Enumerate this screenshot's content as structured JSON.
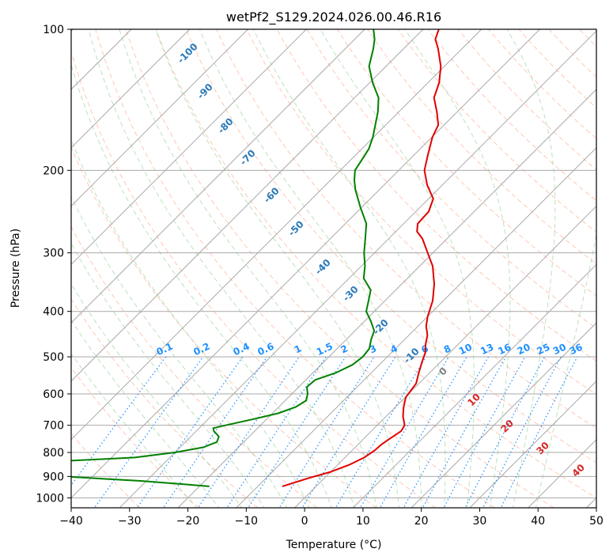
{
  "chart_data": {
    "type": "line",
    "subtype": "skew-t log-p diagram",
    "title": "wetPf2_S129.2024.026.00.46.R16",
    "xlabel": "Temperature (°C)",
    "ylabel": "Pressure (hPa)",
    "xlim": [
      -40,
      50
    ],
    "ylim": [
      1050,
      100
    ],
    "y_scale": "log",
    "grid": true,
    "x_ticks": [
      -40,
      -30,
      -20,
      -10,
      0,
      10,
      20,
      30,
      40,
      50
    ],
    "x_tick_labels": [
      "−40",
      "−30",
      "−20",
      "−10",
      "0",
      "10",
      "20",
      "30",
      "40",
      "50"
    ],
    "y_ticks": [
      100,
      200,
      300,
      400,
      500,
      600,
      700,
      800,
      900,
      1000
    ],
    "y_tick_labels": [
      "100",
      "200",
      "300",
      "400",
      "500",
      "600",
      "700",
      "800",
      "900",
      "1000"
    ],
    "series": [
      {
        "color": "#e00000",
        "points": [
          {
            "p": 945,
            "t": -5.8
          },
          {
            "p": 930,
            "t": -4.6
          },
          {
            "p": 905,
            "t": -2.5
          },
          {
            "p": 880,
            "t": 0.0
          },
          {
            "p": 850,
            "t": 2.0
          },
          {
            "p": 820,
            "t": 3.3
          },
          {
            "p": 790,
            "t": 3.9
          },
          {
            "p": 770,
            "t": 4.0
          },
          {
            "p": 750,
            "t": 4.4
          },
          {
            "p": 720,
            "t": 5.1
          },
          {
            "p": 700,
            "t": 4.7
          },
          {
            "p": 670,
            "t": 2.9
          },
          {
            "p": 640,
            "t": 1.4
          },
          {
            "p": 610,
            "t": 0.1
          },
          {
            "p": 570,
            "t": -0.5
          },
          {
            "p": 540,
            "t": -1.9
          },
          {
            "p": 510,
            "t": -3.3
          },
          {
            "p": 490,
            "t": -4.2
          },
          {
            "p": 470,
            "t": -5.6
          },
          {
            "p": 450,
            "t": -6.8
          },
          {
            "p": 430,
            "t": -8.6
          },
          {
            "p": 410,
            "t": -10.0
          },
          {
            "p": 380,
            "t": -11.8
          },
          {
            "p": 350,
            "t": -14.4
          },
          {
            "p": 320,
            "t": -17.8
          },
          {
            "p": 300,
            "t": -20.9
          },
          {
            "p": 280,
            "t": -24.2
          },
          {
            "p": 270,
            "t": -26.4
          },
          {
            "p": 260,
            "t": -27.6
          },
          {
            "p": 245,
            "t": -27.8
          },
          {
            "p": 230,
            "t": -29.2
          },
          {
            "p": 215,
            "t": -32.6
          },
          {
            "p": 200,
            "t": -35.6
          },
          {
            "p": 185,
            "t": -37.7
          },
          {
            "p": 170,
            "t": -39.9
          },
          {
            "p": 160,
            "t": -41.0
          },
          {
            "p": 150,
            "t": -43.5
          },
          {
            "p": 140,
            "t": -46.4
          },
          {
            "p": 130,
            "t": -48.1
          },
          {
            "p": 120,
            "t": -50.6
          },
          {
            "p": 110,
            "t": -54.1
          },
          {
            "p": 105,
            "t": -56.2
          },
          {
            "p": 100,
            "t": -57.3
          }
        ]
      },
      {
        "color": "#008000",
        "points": [
          {
            "p": 945,
            "t": -18.3
          },
          {
            "p": 935,
            "t": -23.0
          },
          {
            "p": 920,
            "t": -31.0
          },
          {
            "p": 910,
            "t": -38.0
          },
          {
            "p": 900,
            "t": -45.0
          },
          {
            "p": 860,
            "t": -60.0
          },
          {
            "p": 840,
            "t": -52.0
          },
          {
            "p": 820,
            "t": -36.0
          },
          {
            "p": 800,
            "t": -30.0
          },
          {
            "p": 780,
            "t": -26.0
          },
          {
            "p": 760,
            "t": -24.6
          },
          {
            "p": 740,
            "t": -25.2
          },
          {
            "p": 720,
            "t": -27.0
          },
          {
            "p": 710,
            "t": -27.6
          },
          {
            "p": 700,
            "t": -26.0
          },
          {
            "p": 680,
            "t": -22.4
          },
          {
            "p": 660,
            "t": -19.0
          },
          {
            "p": 640,
            "t": -17.1
          },
          {
            "p": 620,
            "t": -16.4
          },
          {
            "p": 600,
            "t": -17.3
          },
          {
            "p": 580,
            "t": -18.6
          },
          {
            "p": 560,
            "t": -18.4
          },
          {
            "p": 540,
            "t": -16.0
          },
          {
            "p": 520,
            "t": -14.6
          },
          {
            "p": 500,
            "t": -14.2
          },
          {
            "p": 480,
            "t": -14.5
          },
          {
            "p": 460,
            "t": -15.7
          },
          {
            "p": 440,
            "t": -16.7
          },
          {
            "p": 420,
            "t": -18.9
          },
          {
            "p": 400,
            "t": -21.4
          },
          {
            "p": 380,
            "t": -22.8
          },
          {
            "p": 360,
            "t": -24.3
          },
          {
            "p": 340,
            "t": -27.5
          },
          {
            "p": 320,
            "t": -29.4
          },
          {
            "p": 300,
            "t": -31.8
          },
          {
            "p": 280,
            "t": -34.0
          },
          {
            "p": 260,
            "t": -36.4
          },
          {
            "p": 240,
            "t": -40.2
          },
          {
            "p": 220,
            "t": -44.1
          },
          {
            "p": 210,
            "t": -45.9
          },
          {
            "p": 200,
            "t": -47.5
          },
          {
            "p": 190,
            "t": -48.1
          },
          {
            "p": 180,
            "t": -48.8
          },
          {
            "p": 170,
            "t": -50.1
          },
          {
            "p": 160,
            "t": -51.8
          },
          {
            "p": 150,
            "t": -53.6
          },
          {
            "p": 140,
            "t": -55.9
          },
          {
            "p": 130,
            "t": -59.5
          },
          {
            "p": 120,
            "t": -62.9
          },
          {
            "p": 110,
            "t": -65.2
          },
          {
            "p": 105,
            "t": -66.6
          },
          {
            "p": 100,
            "t": -68.5
          }
        ]
      }
    ],
    "dry_adiabat_labels": [
      "-100",
      "-90",
      "-80",
      "-70",
      "-60",
      "-50",
      "-40",
      "-30",
      "-20",
      "-10",
      "0",
      "10",
      "20",
      "30",
      "40"
    ],
    "dry_adiabat_label_values": [
      -100,
      -90,
      -80,
      -70,
      -60,
      -50,
      -40,
      -30,
      -20,
      -10,
      0,
      10,
      20,
      30,
      40
    ],
    "mixing_ratio_labels": [
      "0.1",
      "0.2",
      "0.4",
      "0.6",
      "1",
      "1.5",
      "2",
      "3",
      "4",
      "6",
      "8",
      "10",
      "13",
      "16",
      "20",
      "25",
      "30",
      "36"
    ],
    "mixing_ratio_values": [
      0.1,
      0.2,
      0.4,
      0.6,
      1,
      1.5,
      2,
      3,
      4,
      6,
      8,
      10,
      13,
      16,
      20,
      25,
      30,
      36
    ],
    "moist_adiabat_marker": "0",
    "colors": {
      "temperature": "#e00000",
      "dewpoint": "#008000",
      "isotherm": "#a9a9a9",
      "dry_adiabat": "#ff9a78",
      "moist_adiabat": "#8fce8f",
      "mixing_ratio": "#1e90ff",
      "dry_label": "#2a7ab8",
      "warm_label": "#d62728",
      "zero_label": "#808080"
    }
  }
}
